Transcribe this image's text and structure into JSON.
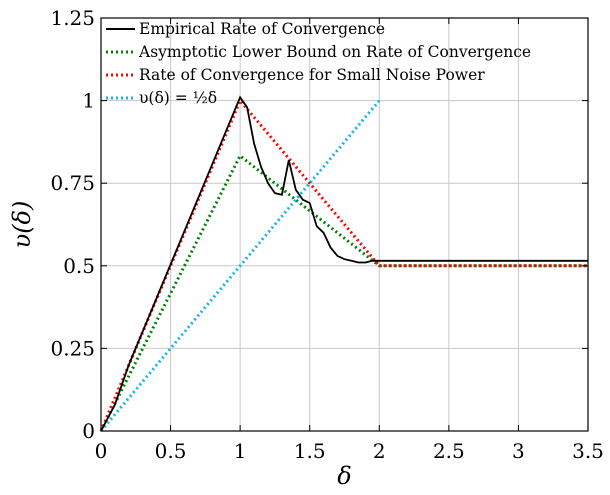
{
  "chart_data": {
    "type": "line",
    "xlabel": "δ",
    "ylabel": "υ(δ)",
    "xlim": [
      0,
      3.5
    ],
    "ylim": [
      0,
      1.25
    ],
    "xticks": [
      "0",
      "0.5",
      "1",
      "1.5",
      "2",
      "2.5",
      "3",
      "3.5"
    ],
    "yticks": [
      "0",
      "0.25",
      "0.5",
      "0.75",
      "1",
      "1.25"
    ],
    "grid": true,
    "legend_position": "top-left",
    "series": [
      {
        "name": "Empirical Rate of Convergence",
        "color": "#000000",
        "style": "solid",
        "x": [
          0,
          0.1,
          0.2,
          1.0,
          1.05,
          1.1,
          1.15,
          1.2,
          1.25,
          1.3,
          1.35,
          1.4,
          1.45,
          1.5,
          1.55,
          1.6,
          1.65,
          1.7,
          1.75,
          1.8,
          1.85,
          1.9,
          1.95,
          2.0,
          2.5,
          3.0,
          3.5
        ],
        "y": [
          0,
          0.08,
          0.2,
          1.01,
          0.98,
          0.87,
          0.8,
          0.75,
          0.72,
          0.715,
          0.82,
          0.73,
          0.7,
          0.69,
          0.62,
          0.6,
          0.555,
          0.53,
          0.52,
          0.515,
          0.51,
          0.51,
          0.515,
          0.515,
          0.515,
          0.515,
          0.515
        ]
      },
      {
        "name": "Asymptotic Lower Bound on Rate of Convergence",
        "color": "#008000",
        "style": "dotted",
        "x": [
          0,
          1.0,
          2.0,
          3.5
        ],
        "y": [
          0,
          0.833,
          0.5,
          0.5
        ]
      },
      {
        "name": "Rate of Convergence for Small Noise Power",
        "color": "#ff0000",
        "style": "dotted",
        "x": [
          0,
          1.0,
          2.0,
          3.5
        ],
        "y": [
          0,
          1.0,
          0.5,
          0.5
        ]
      },
      {
        "name": "υ(δ) = ½δ",
        "color": "#17b3e6",
        "style": "dotted",
        "x": [
          0,
          2.0
        ],
        "y": [
          0,
          1.0
        ]
      }
    ]
  }
}
